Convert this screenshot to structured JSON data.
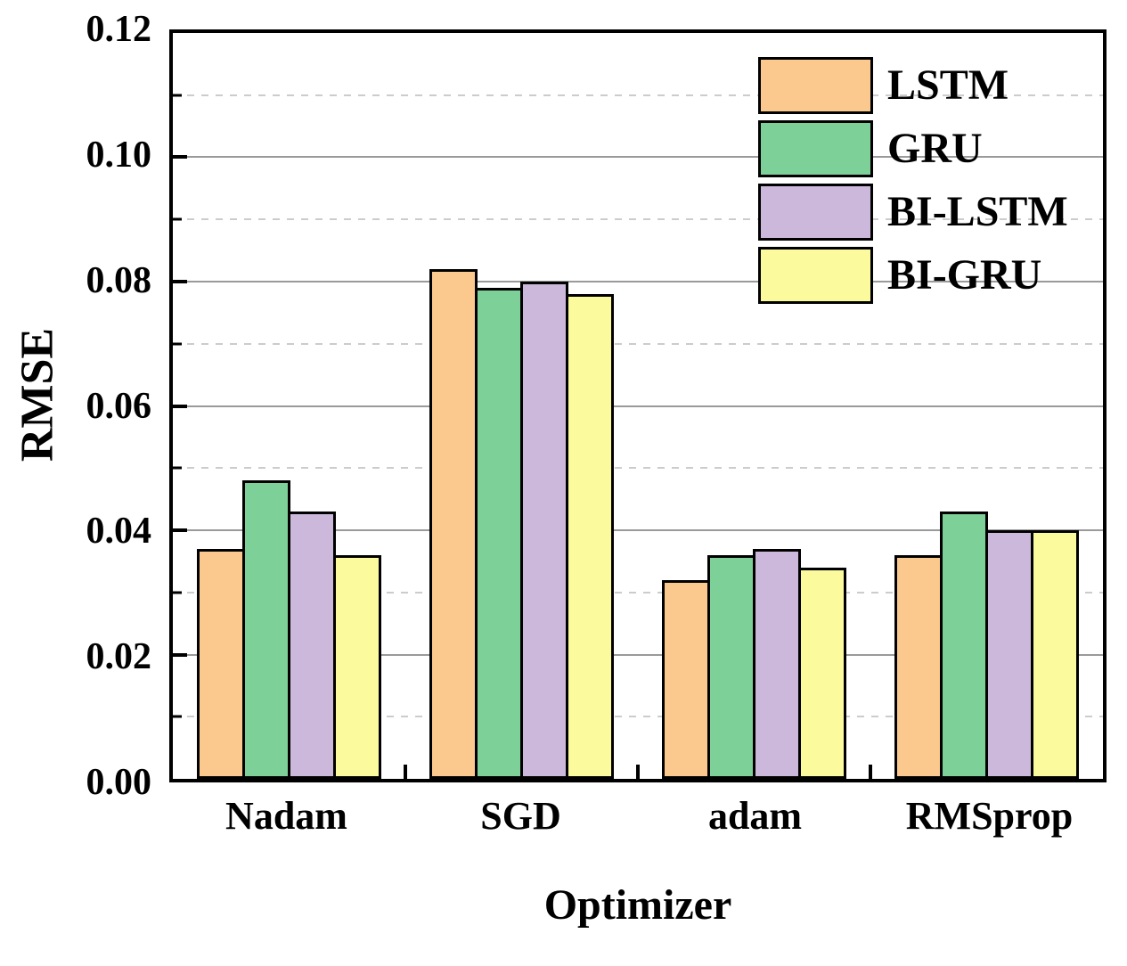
{
  "chart_data": {
    "type": "bar",
    "title": "",
    "xlabel": "Optimizer",
    "ylabel": "RMSE",
    "categories": [
      "Nadam",
      "SGD",
      "adam",
      "RMSprop"
    ],
    "series": [
      {
        "name": "LSTM",
        "color": "#FBC98E",
        "values": [
          0.037,
          0.082,
          0.032,
          0.036
        ]
      },
      {
        "name": "GRU",
        "color": "#7CD098",
        "values": [
          0.048,
          0.079,
          0.036,
          0.043
        ]
      },
      {
        "name": "BI-LSTM",
        "color": "#CBB8DA",
        "values": [
          0.043,
          0.08,
          0.037,
          0.04
        ]
      },
      {
        "name": "BI-GRU",
        "color": "#FBFB9D",
        "values": [
          0.036,
          0.078,
          0.034,
          0.04
        ]
      }
    ],
    "ylim": [
      0,
      0.12
    ],
    "ytick_step": 0.02,
    "yminor_step": 0.01,
    "ytick_labels": [
      "0.00",
      "0.02",
      "0.04",
      "0.06",
      "0.08",
      "0.10",
      "0.12"
    ],
    "grid": {
      "major_style": "solid",
      "minor_style": "dashed",
      "major_color": "#9a9a9a",
      "minor_color": "#cccccc"
    },
    "legend": {
      "position": "top-right",
      "entries": [
        "LSTM",
        "GRU",
        "BI-LSTM",
        "BI-GRU"
      ]
    },
    "axis_color": "#000000",
    "bar_border_color": "#000000"
  }
}
